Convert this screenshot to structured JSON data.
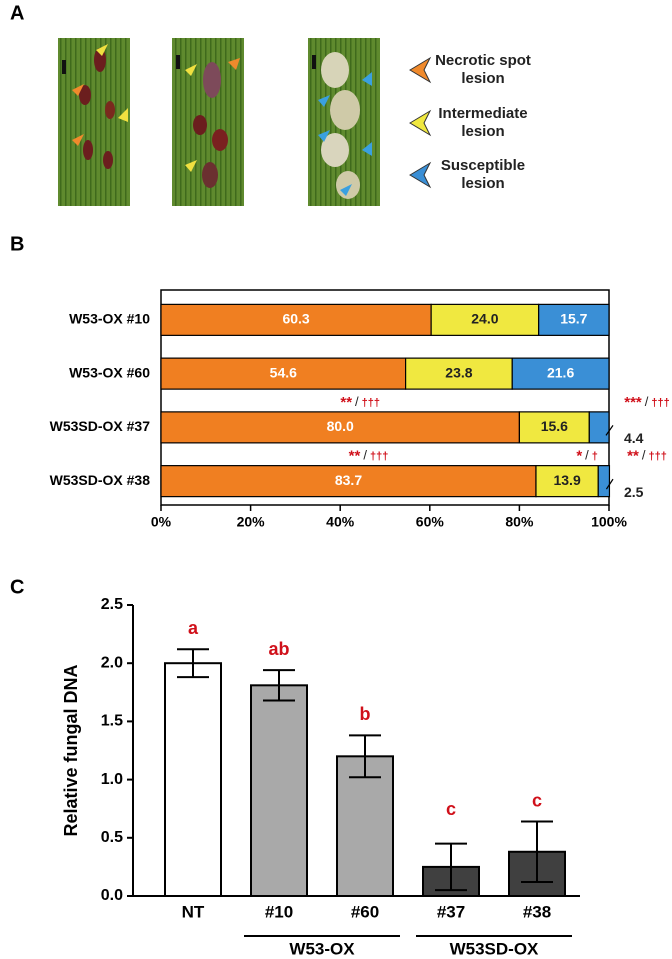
{
  "panel_labels": [
    "A",
    "B",
    "C"
  ],
  "chart_data": [
    {
      "type": "stacked-hbar",
      "categories": [
        "W53-OX #10",
        "W53-OX #60",
        "W53SD-OX #37",
        "W53SD-OX #38"
      ],
      "series": [
        {
          "name": "Necrotic spot lesion",
          "color": "#f07f21",
          "values": [
            60.3,
            54.6,
            80.0,
            83.7
          ],
          "value_labels": [
            "60.3",
            "54.6",
            "80.0",
            "83.7"
          ],
          "significance": [
            null,
            null,
            {
              "stars": "**",
              "daggers": "†††"
            },
            {
              "stars": "**",
              "daggers": "†††"
            }
          ]
        },
        {
          "name": "Intermediate lesion",
          "color": "#f0e840",
          "values": [
            24.0,
            23.8,
            15.6,
            13.9
          ],
          "value_labels": [
            "24.0",
            "23.8",
            "15.6",
            "13.9"
          ],
          "significance": [
            null,
            null,
            null,
            {
              "stars": "*",
              "daggers": "†"
            }
          ]
        },
        {
          "name": "Susceptible lesion",
          "color": "#3a8fd6",
          "values": [
            15.7,
            21.6,
            4.4,
            2.5
          ],
          "value_labels": [
            "15.7",
            "21.6",
            "4.4",
            "2.5"
          ],
          "significance": [
            null,
            null,
            {
              "stars": "***",
              "daggers": "†††"
            },
            {
              "stars": "**",
              "daggers": "†††"
            }
          ]
        }
      ],
      "separator": "/",
      "xlim": [
        0,
        100
      ],
      "xticks": [
        {
          "value": 0,
          "label": "0%"
        },
        {
          "value": 20,
          "label": "20%"
        },
        {
          "value": 40,
          "label": "40%"
        },
        {
          "value": 60,
          "label": "60%"
        },
        {
          "value": 80,
          "label": "80%"
        },
        {
          "value": 100,
          "label": "100%"
        }
      ]
    },
    {
      "type": "bar",
      "categories": [
        "NT",
        "#10",
        "#60",
        "#37",
        "#38"
      ],
      "values": [
        2.0,
        1.81,
        1.2,
        0.25,
        0.38
      ],
      "errors": [
        0.12,
        0.13,
        0.18,
        0.2,
        0.26
      ],
      "colors": [
        "#ffffff",
        "#a9a9a9",
        "#a9a9a9",
        "#404040",
        "#404040"
      ],
      "letters": [
        "a",
        "ab",
        "b",
        "c",
        "c"
      ],
      "ylabel": "Relative fungal DNA",
      "groups": [
        {
          "name": "W53-OX",
          "from": "#10",
          "to": "#60"
        },
        {
          "name": "W53SD-OX",
          "from": "#37",
          "to": "#38"
        }
      ],
      "ylim": [
        0,
        2.5
      ],
      "yticks": [
        {
          "value": 0,
          "label": "0.0"
        },
        0.5,
        {
          "value": 1,
          "label": "1.0"
        },
        1.5,
        {
          "value": 2,
          "label": "2.0"
        },
        2.5
      ]
    }
  ]
}
